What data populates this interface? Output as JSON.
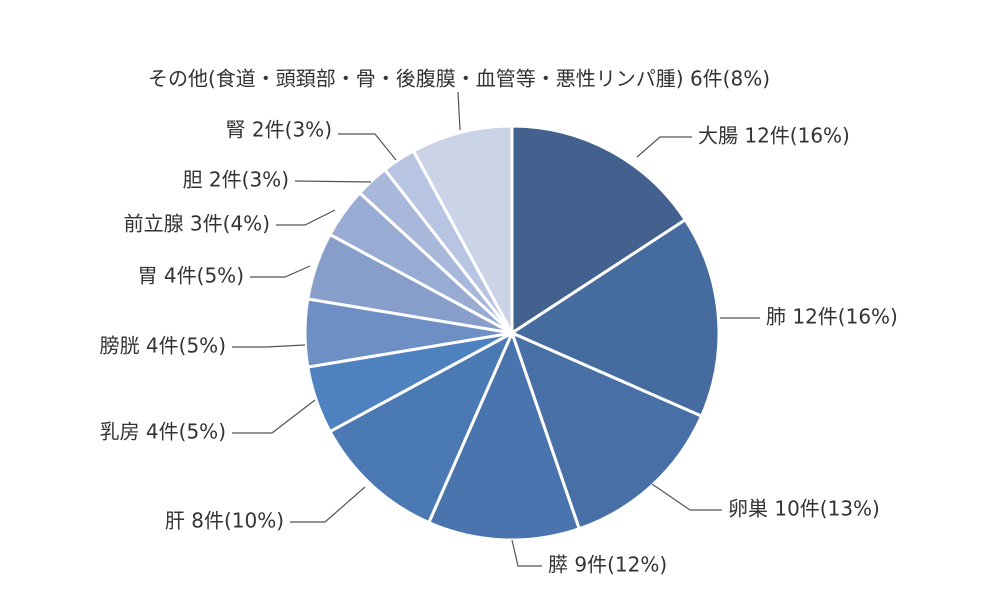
{
  "chart_data": {
    "type": "pie",
    "title": "",
    "slices": [
      {
        "name": "大腸",
        "value": 12,
        "label": "大腸 12件(16%)",
        "color": "#42618f"
      },
      {
        "name": "肺",
        "value": 12,
        "label": "肺 12件(16%)",
        "color": "#466b9e"
      },
      {
        "name": "卵巣",
        "value": 10,
        "label": "卵巣 10件(13%)",
        "color": "#4870a6"
      },
      {
        "name": "膵",
        "value": 9,
        "label": "膵 9件(12%)",
        "color": "#4a74ad"
      },
      {
        "name": "肝",
        "value": 8,
        "label": "肝 8件(10%)",
        "color": "#4b79b4"
      },
      {
        "name": "乳房",
        "value": 4,
        "label": "乳房 4件(5%)",
        "color": "#4e81bf"
      },
      {
        "name": "膀胱",
        "value": 4,
        "label": "膀胱 4件(5%)",
        "color": "#6e8fc4"
      },
      {
        "name": "胃",
        "value": 4,
        "label": "胃 4件(5%)",
        "color": "#879ecb"
      },
      {
        "name": "前立腺",
        "value": 3,
        "label": "前立腺 3件(4%)",
        "color": "#98acd3"
      },
      {
        "name": "胆",
        "value": 2,
        "label": "胆 2件(3%)",
        "color": "#a8b8db"
      },
      {
        "name": "腎",
        "value": 2,
        "label": "腎 2件(3%)",
        "color": "#b7c4e2"
      },
      {
        "name": "その他",
        "value": 6,
        "label": "その他(食道・頭頚部・骨・後腹膜・血管等・悪性リンパ腫) 6件(8%)",
        "color": "#cbd3e6"
      }
    ]
  }
}
